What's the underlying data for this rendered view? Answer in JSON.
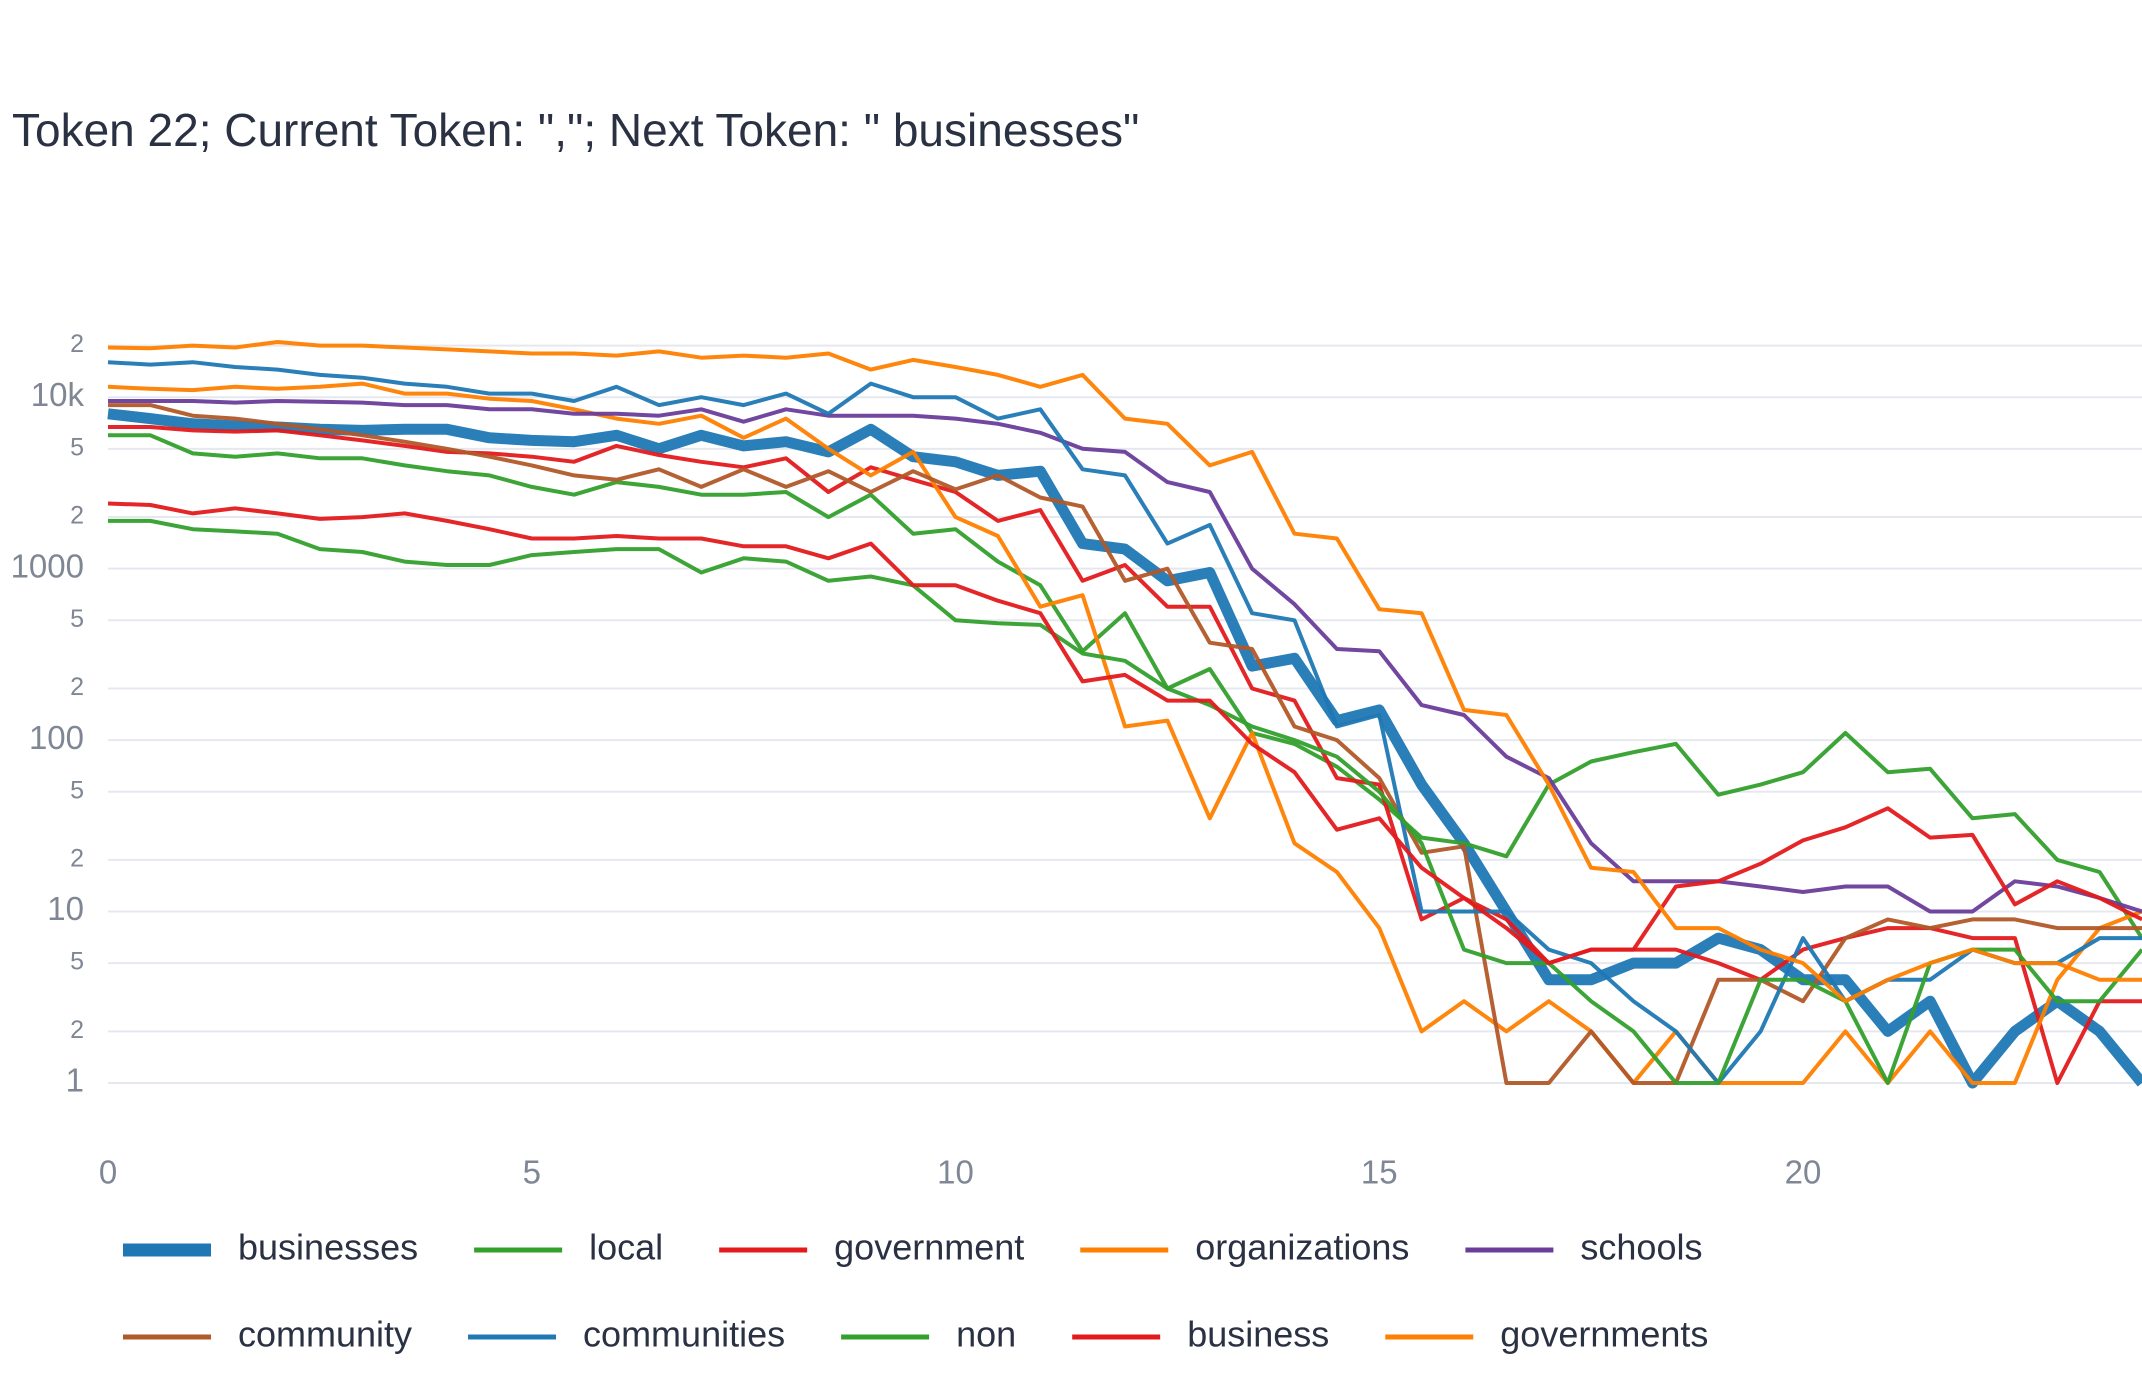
{
  "chart_data": {
    "type": "line",
    "title": "Token 22; Current Token: \",\"; Next Token: \" businesses\"",
    "log_y": true,
    "grid": true,
    "x": [
      0,
      0.5,
      1,
      1.5,
      2,
      2.5,
      3,
      3.5,
      4,
      4.5,
      5,
      5.5,
      6,
      6.5,
      7,
      7.5,
      8,
      8.5,
      9,
      9.5,
      10,
      10.5,
      11,
      11.5,
      12,
      12.5,
      13,
      13.5,
      14,
      14.5,
      15,
      15.5,
      16,
      16.5,
      17,
      17.5,
      18,
      18.5,
      19,
      19.5,
      20,
      20.5,
      21,
      21.5,
      22,
      22.5,
      23,
      23.5,
      24
    ],
    "xlim": [
      0,
      24
    ],
    "xticks": [
      0,
      5,
      10,
      15,
      20
    ],
    "ylim": [
      0.6,
      25000
    ],
    "yticks": [
      1,
      2,
      {
        "value": 5,
        "label": "5"
      },
      10,
      {
        "value": 20,
        "label": "2"
      },
      {
        "value": 50,
        "label": "5"
      },
      100,
      {
        "value": 200,
        "label": "2"
      },
      {
        "value": 500,
        "label": "5"
      },
      1000,
      {
        "value": 2000,
        "label": "2"
      },
      {
        "value": 5000,
        "label": "5"
      },
      {
        "value": 10000,
        "label": "10k"
      },
      {
        "value": 20000,
        "label": "2"
      }
    ],
    "series": [
      {
        "name": "businesses",
        "color": "#1f78b4",
        "values": [
          8000,
          7500,
          7000,
          6800,
          6700,
          6500,
          6400,
          6500,
          6500,
          5800,
          5600,
          5500,
          6000,
          5000,
          6000,
          5200,
          5500,
          4800,
          6500,
          4500,
          4200,
          3500,
          3700,
          1400,
          1300,
          850,
          950,
          270,
          300,
          130,
          150,
          55,
          25,
          10,
          4,
          4,
          5,
          5,
          7,
          6,
          4,
          4,
          2,
          3,
          1,
          2,
          3,
          2,
          1
        ]
      },
      {
        "name": "local",
        "color": "#33a02c",
        "values": [
          6000,
          6000,
          4700,
          4500,
          4700,
          4400,
          4400,
          4000,
          3700,
          3500,
          3000,
          2700,
          3200,
          3000,
          2700,
          2700,
          2800,
          2000,
          2700,
          1600,
          1700,
          1100,
          800,
          330,
          550,
          200,
          260,
          110,
          95,
          70,
          45,
          27,
          25,
          21,
          55,
          75,
          85,
          95,
          48,
          55,
          65,
          110,
          65,
          68,
          35,
          37,
          20,
          17,
          7
        ]
      },
      {
        "name": "government",
        "color": "#e31a1c",
        "values": [
          6700,
          6700,
          6400,
          6300,
          6400,
          6000,
          5600,
          5200,
          4800,
          4700,
          4500,
          4200,
          5200,
          4600,
          4200,
          3900,
          4400,
          2800,
          3900,
          3300,
          2800,
          1900,
          2200,
          850,
          1050,
          600,
          600,
          200,
          170,
          60,
          55,
          9,
          12,
          9,
          5,
          6,
          6,
          6,
          5,
          4,
          6,
          7,
          8,
          8,
          7,
          7,
          1,
          3,
          3
        ]
      },
      {
        "name": "organizations",
        "color": "#ff7f00",
        "values": [
          11500,
          11200,
          11000,
          11500,
          11200,
          11500,
          12000,
          10500,
          10500,
          9800,
          9500,
          8500,
          7500,
          7000,
          7800,
          5800,
          7500,
          5000,
          3500,
          4800,
          2000,
          1550,
          600,
          700,
          120,
          130,
          35,
          110,
          25,
          17,
          8,
          2,
          3,
          2,
          3,
          2,
          1,
          2,
          1,
          1,
          1,
          2,
          1,
          2,
          1,
          1,
          4,
          8,
          10
        ]
      },
      {
        "name": "schools",
        "color": "#6a3d9a",
        "values": [
          9500,
          9500,
          9500,
          9300,
          9500,
          9400,
          9300,
          9000,
          9000,
          8500,
          8500,
          8000,
          8000,
          7800,
          8500,
          7200,
          8500,
          7800,
          7800,
          7800,
          7500,
          7000,
          6200,
          5000,
          4800,
          3200,
          2800,
          1000,
          620,
          340,
          330,
          160,
          140,
          80,
          60,
          25,
          15,
          15,
          15,
          14,
          13,
          14,
          14,
          10,
          10,
          15,
          14,
          12,
          10
        ]
      },
      {
        "name": "community",
        "color": "#b15928",
        "values": [
          9000,
          9000,
          7800,
          7500,
          7000,
          6500,
          6000,
          5500,
          5000,
          4500,
          4000,
          3500,
          3300,
          3800,
          3000,
          3800,
          3000,
          3700,
          2800,
          3700,
          2900,
          3500,
          2600,
          2300,
          850,
          1000,
          370,
          340,
          120,
          100,
          60,
          22,
          24,
          1,
          1,
          2,
          1,
          1,
          4,
          4,
          3,
          7,
          9,
          8,
          9,
          9,
          8,
          8,
          8
        ]
      },
      {
        "name": "communities",
        "color": "#1f78b4",
        "values": [
          16000,
          15500,
          16000,
          15000,
          14500,
          13500,
          13000,
          12000,
          11500,
          10500,
          10500,
          9500,
          11500,
          9000,
          10000,
          9000,
          10500,
          8000,
          12000,
          10000,
          10000,
          7500,
          8500,
          3800,
          3500,
          1400,
          1800,
          550,
          500,
          120,
          140,
          10,
          10,
          10,
          6,
          5,
          3,
          2,
          1,
          2,
          7,
          3,
          4,
          4,
          6,
          5,
          5,
          7,
          7
        ]
      },
      {
        "name": "non",
        "color": "#33a02c",
        "values": [
          1900,
          1900,
          1700,
          1650,
          1600,
          1300,
          1250,
          1100,
          1050,
          1050,
          1200,
          1250,
          1300,
          1300,
          950,
          1150,
          1100,
          850,
          900,
          800,
          500,
          480,
          470,
          320,
          290,
          200,
          160,
          120,
          100,
          80,
          50,
          25,
          6,
          5,
          5,
          3,
          2,
          1,
          1,
          4,
          4,
          3,
          1,
          5,
          6,
          6,
          3,
          3,
          6
        ]
      },
      {
        "name": "business",
        "color": "#e31a1c",
        "values": [
          2400,
          2350,
          2100,
          2250,
          2100,
          1950,
          2000,
          2100,
          1900,
          1700,
          1500,
          1500,
          1550,
          1500,
          1500,
          1350,
          1350,
          1150,
          1400,
          800,
          800,
          650,
          550,
          220,
          240,
          170,
          170,
          95,
          65,
          30,
          35,
          18,
          12,
          8,
          5,
          6,
          6,
          14,
          15,
          19,
          26,
          31,
          40,
          27,
          28,
          11,
          15,
          12,
          9
        ]
      },
      {
        "name": "governments",
        "color": "#ff7f00",
        "values": [
          19500,
          19300,
          20000,
          19500,
          21000,
          20000,
          20000,
          19500,
          19000,
          18500,
          18000,
          18000,
          17500,
          18500,
          17000,
          17500,
          17000,
          18000,
          14500,
          16500,
          15000,
          13500,
          11500,
          13500,
          7500,
          7000,
          4000,
          4800,
          1600,
          1500,
          580,
          550,
          150,
          140,
          55,
          18,
          17,
          8,
          8,
          6,
          5,
          3,
          4,
          5,
          6,
          5,
          5,
          4,
          4
        ]
      }
    ]
  }
}
